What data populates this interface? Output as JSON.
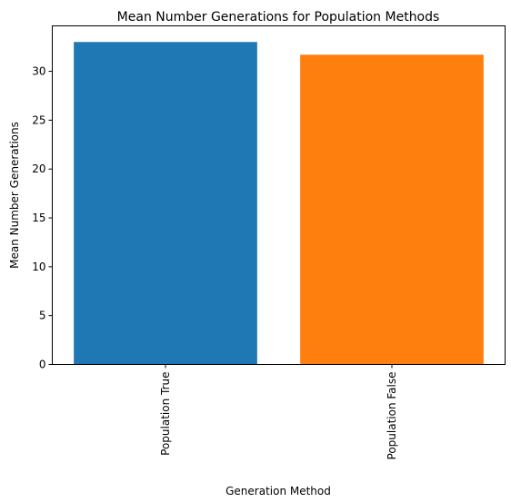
{
  "chart_data": {
    "type": "bar",
    "title": "Mean Number Generations for Population Methods",
    "xlabel": "Generation Method",
    "ylabel": "Mean Number Generations",
    "categories": [
      "Population True",
      "Population False"
    ],
    "values": [
      33.0,
      31.7
    ],
    "colors": [
      "#1f77b4",
      "#ff7f0e"
    ],
    "ylim": [
      0,
      33.0
    ],
    "yticks": [
      0,
      5,
      10,
      15,
      20,
      25,
      30
    ],
    "grid": false,
    "legend": "none"
  }
}
